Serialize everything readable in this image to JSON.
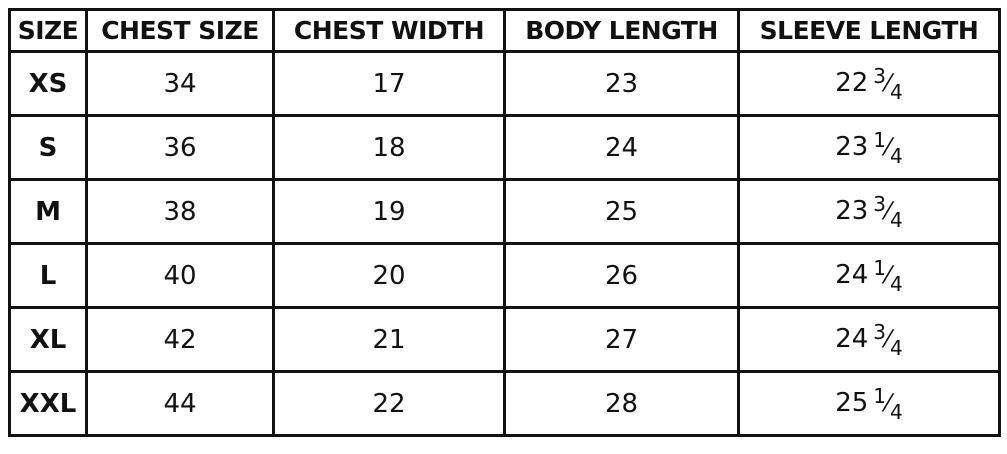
{
  "headers": [
    "SIZE",
    "CHEST SIZE",
    "CHEST WIDTH",
    "BODY LENGTH",
    "SLEEVE LENGTH"
  ],
  "rows": [
    {
      "size": "XS",
      "chest_size": "34",
      "chest_width": "17",
      "body_length": "23",
      "sleeve": {
        "whole": "22",
        "num": "3",
        "den": "4"
      }
    },
    {
      "size": "S",
      "chest_size": "36",
      "chest_width": "18",
      "body_length": "24",
      "sleeve": {
        "whole": "23",
        "num": "1",
        "den": "4"
      }
    },
    {
      "size": "M",
      "chest_size": "38",
      "chest_width": "19",
      "body_length": "25",
      "sleeve": {
        "whole": "23",
        "num": "3",
        "den": "4"
      }
    },
    {
      "size": "L",
      "chest_size": "40",
      "chest_width": "20",
      "body_length": "26",
      "sleeve": {
        "whole": "24",
        "num": "1",
        "den": "4"
      }
    },
    {
      "size": "XL",
      "chest_size": "42",
      "chest_width": "21",
      "body_length": "27",
      "sleeve": {
        "whole": "24",
        "num": "3",
        "den": "4"
      }
    },
    {
      "size": "XXL",
      "chest_size": "44",
      "chest_width": "22",
      "body_length": "28",
      "sleeve": {
        "whole": "25",
        "num": "1",
        "den": "4"
      }
    }
  ]
}
